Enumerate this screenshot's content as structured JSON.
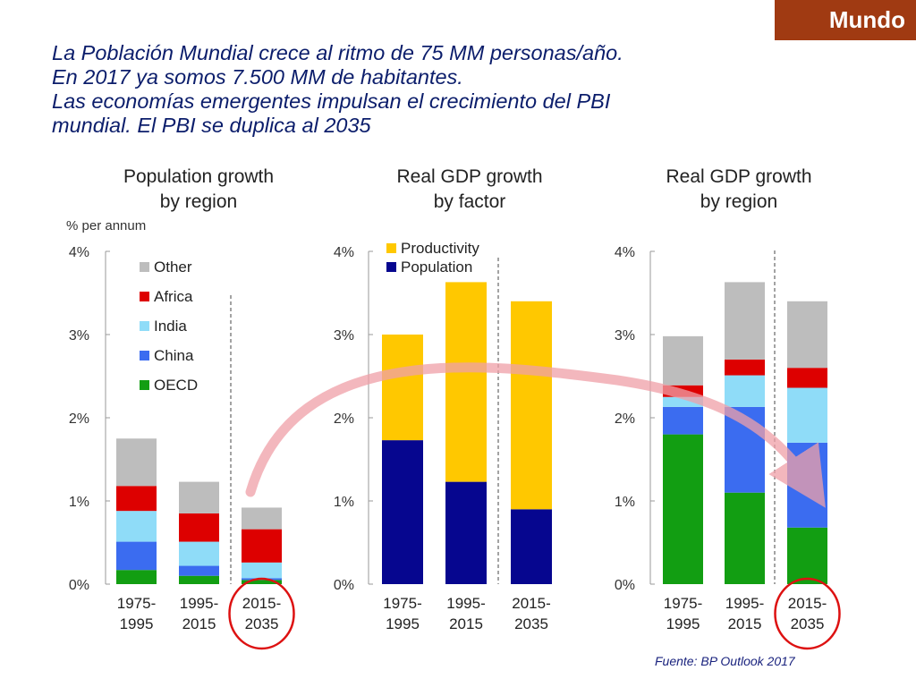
{
  "badge": {
    "label": "Mundo"
  },
  "headline": {
    "lines": [
      "La Población Mundial crece al ritmo de 75 MM personas/año.",
      "En 2017 ya somos 7.500 MM de habitantes.",
      "Las economías emergentes impulsan el crecimiento del PBI",
      "mundial. El PBI se duplica al 2035"
    ]
  },
  "source": "Fuente: BP Outlook 2017",
  "colors": {
    "other": "#bdbdbd",
    "africa": "#dd0000",
    "india": "#8fdcf8",
    "china": "#3b6cf0",
    "oecd": "#129e12",
    "productivity": "#ffc800",
    "population": "#06068f",
    "arrow": "#f0a0a8",
    "circle": "#dd1111"
  },
  "chart_data": [
    {
      "type": "bar",
      "stacked": true,
      "title": "Population growth by region",
      "title_lines": [
        "Population growth",
        "by region"
      ],
      "ylabel": "% per annum",
      "ylim": [
        0,
        4
      ],
      "yticks": [
        "0%",
        "1%",
        "2%",
        "3%",
        "4%"
      ],
      "categories": [
        "1975-1995",
        "1995-2015",
        "2015-2035"
      ],
      "legend_position": "top-left",
      "series": [
        {
          "name": "OECD",
          "values": [
            0.17,
            0.1,
            0.05
          ]
        },
        {
          "name": "China",
          "values": [
            0.34,
            0.12,
            0.02
          ]
        },
        {
          "name": "India",
          "values": [
            0.37,
            0.29,
            0.19
          ]
        },
        {
          "name": "Africa",
          "values": [
            0.3,
            0.34,
            0.4
          ]
        },
        {
          "name": "Other",
          "values": [
            0.57,
            0.38,
            0.26
          ]
        }
      ],
      "highlighted_category": "2015-2035"
    },
    {
      "type": "bar",
      "stacked": true,
      "title": "Real GDP growth by factor",
      "title_lines": [
        "Real GDP growth",
        "by factor"
      ],
      "ylim": [
        0,
        4
      ],
      "yticks": [
        "0%",
        "1%",
        "2%",
        "3%",
        "4%"
      ],
      "categories": [
        "1975-1995",
        "1995-2015",
        "2015-2035"
      ],
      "legend_position": "top-left",
      "series": [
        {
          "name": "Population",
          "values": [
            1.73,
            1.23,
            0.9
          ]
        },
        {
          "name": "Productivity",
          "values": [
            1.27,
            2.4,
            2.5
          ]
        }
      ]
    },
    {
      "type": "bar",
      "stacked": true,
      "title": "Real GDP growth by region",
      "title_lines": [
        "Real GDP growth",
        "by region"
      ],
      "ylim": [
        0,
        4
      ],
      "yticks": [
        "0%",
        "1%",
        "2%",
        "3%",
        "4%"
      ],
      "categories": [
        "1975-1995",
        "1995-2015",
        "2015-2035"
      ],
      "series": [
        {
          "name": "OECD",
          "values": [
            1.8,
            1.1,
            0.68
          ]
        },
        {
          "name": "China",
          "values": [
            0.33,
            1.03,
            1.02
          ]
        },
        {
          "name": "India",
          "values": [
            0.12,
            0.38,
            0.66
          ]
        },
        {
          "name": "Africa",
          "values": [
            0.14,
            0.19,
            0.24
          ]
        },
        {
          "name": "Other",
          "values": [
            0.59,
            0.93,
            0.8
          ]
        }
      ],
      "highlighted_category": "2015-2035"
    }
  ]
}
